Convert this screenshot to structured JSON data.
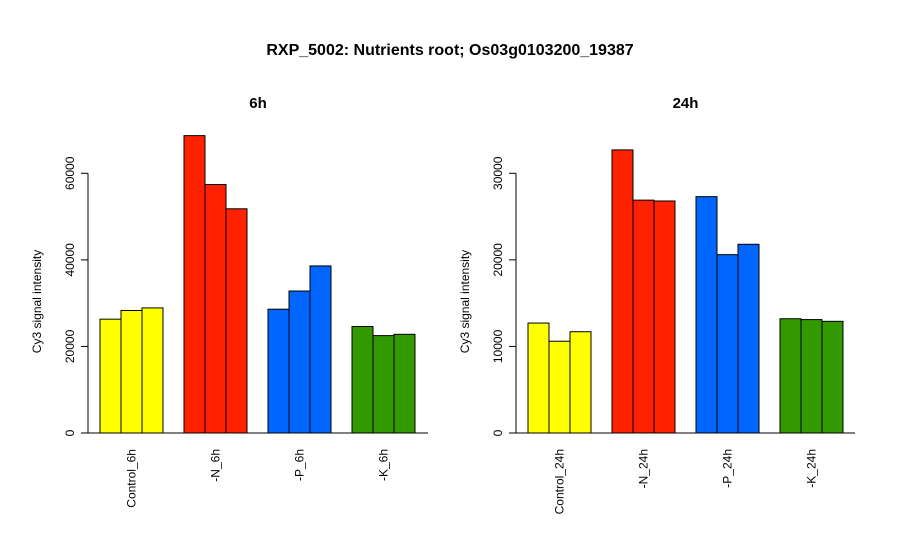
{
  "title": "RXP_5002: Nutrients root; Os03g0103200_19387",
  "chart_data": [
    {
      "type": "bar",
      "title": "6h",
      "ylabel": "Cy3 signal intensity",
      "ylim": [
        0,
        70000
      ],
      "yticks": [
        0,
        20000,
        40000,
        60000
      ],
      "ytick_labels": [
        "0",
        "20000",
        "40000",
        "60000"
      ],
      "groups": [
        {
          "label": "Control_6h",
          "color": "#FFFF00",
          "values": [
            26300,
            28300,
            28900
          ]
        },
        {
          "label": "-N_6h",
          "color": "#FF2200",
          "values": [
            68700,
            57400,
            51800
          ]
        },
        {
          "label": "-P_6h",
          "color": "#0066FF",
          "values": [
            28600,
            32800,
            38600
          ]
        },
        {
          "label": "-K_6h",
          "color": "#339900",
          "values": [
            24600,
            22500,
            22800
          ]
        }
      ]
    },
    {
      "type": "bar",
      "title": "24h",
      "ylabel": "Cy3 signal intensity",
      "ylim": [
        0,
        35000
      ],
      "yticks": [
        0,
        10000,
        20000,
        30000
      ],
      "ytick_labels": [
        "0",
        "10000",
        "20000",
        "30000"
      ],
      "groups": [
        {
          "label": "Control_24h",
          "color": "#FFFF00",
          "values": [
            12700,
            10600,
            11700
          ]
        },
        {
          "label": "-N_24h",
          "color": "#FF2200",
          "values": [
            32700,
            26900,
            26800
          ]
        },
        {
          "label": "-P_24h",
          "color": "#0066FF",
          "values": [
            27300,
            20600,
            21800
          ]
        },
        {
          "label": "-K_24h",
          "color": "#339900",
          "values": [
            13200,
            13100,
            12900
          ]
        }
      ]
    }
  ]
}
